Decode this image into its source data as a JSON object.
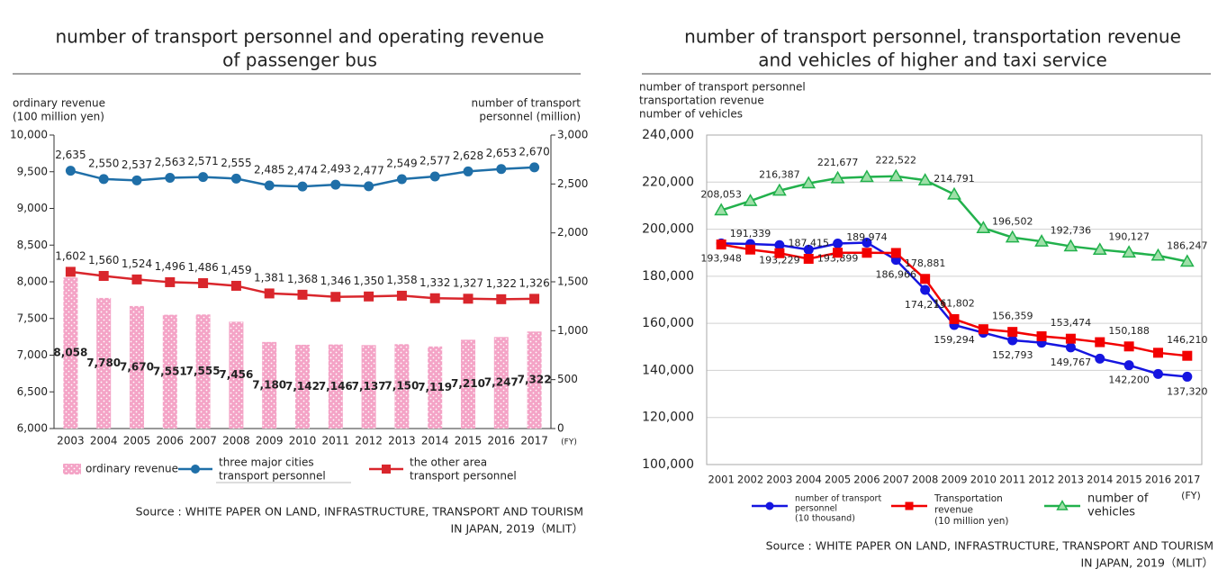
{
  "chart_data": [
    {
      "type": "bar",
      "title": [
        "number of transport personnel and operating revenue",
        "of passenger bus"
      ],
      "y_label": [
        "ordinary revenue",
        "(100 million yen)"
      ],
      "y2_label": [
        "number of transport",
        "personnel (million)"
      ],
      "x_label": "(FY)",
      "categories": [
        "2003",
        "2004",
        "2005",
        "2006",
        "2007",
        "2008",
        "2009",
        "2010",
        "2011",
        "2012",
        "2013",
        "2014",
        "2015",
        "2016",
        "2017"
      ],
      "ylim": [
        6000,
        10000
      ],
      "yticks": [
        {
          "value": 6000,
          "label": "6,000"
        },
        {
          "value": 6500,
          "label": "6,500"
        },
        {
          "value": 7000,
          "label": "7,000"
        },
        {
          "value": 7500,
          "label": "7,500"
        },
        {
          "value": 8000,
          "label": "8,000"
        },
        {
          "value": 8500,
          "label": "8,500"
        },
        {
          "value": 9000,
          "label": "9,000"
        },
        {
          "value": 9500,
          "label": "9,500"
        },
        {
          "value": 10000,
          "label": "10,000"
        }
      ],
      "y2lim": [
        0,
        3000
      ],
      "y2ticks": [
        0,
        500,
        {
          "value": 1000,
          "label": "1,000"
        },
        {
          "value": 1500,
          "label": "1,500"
        },
        {
          "value": 2000,
          "label": "2,000"
        },
        {
          "value": 2500,
          "label": "2,500"
        },
        {
          "value": 3000,
          "label": "3,000"
        }
      ],
      "series": [
        {
          "name": [
            "ordinary revenue"
          ],
          "type": "bar",
          "color": "#f4a3c6",
          "values": [
            8058,
            7780,
            7670,
            7551,
            7555,
            7456,
            7180,
            7142,
            7146,
            7137,
            7150,
            7119,
            7210,
            7247,
            7322
          ],
          "value_labels": [
            "8,058",
            "7,780",
            "7,670",
            "7,551",
            "7,555",
            "7,456",
            "7,180",
            "7,142",
            "7,146",
            "7,137",
            "7,150",
            "7,119",
            "7,210",
            "7,247",
            "7,322"
          ]
        },
        {
          "name": [
            "three major cities",
            "transport personnel"
          ],
          "type": "line",
          "axis": "y2",
          "color": "#1f6fa8",
          "marker": "circle",
          "values": [
            2635,
            2550,
            2537,
            2563,
            2571,
            2555,
            2485,
            2474,
            2493,
            2477,
            2549,
            2577,
            2628,
            2653,
            2670
          ],
          "value_labels": [
            "2,635",
            "2,550",
            "2,537",
            "2,563",
            "2,571",
            "2,555",
            "2,485",
            "2,474",
            "2,493",
            "2,477",
            "2,549",
            "2,577",
            "2,628",
            "2,653",
            "2,670"
          ]
        },
        {
          "name": [
            "the other area",
            "transport personnel"
          ],
          "type": "line",
          "axis": "y2",
          "color": "#d9262c",
          "marker": "square",
          "values": [
            1602,
            1560,
            1524,
            1496,
            1486,
            1459,
            1381,
            1368,
            1346,
            1350,
            1358,
            1332,
            1327,
            1322,
            1326
          ],
          "value_labels": [
            "1,602",
            "1,560",
            "1,524",
            "1,496",
            "1,486",
            "1,459",
            "1,381",
            "1,368",
            "1,346",
            "1,350",
            "1,358",
            "1,332",
            "1,327",
            "1,322",
            "1,326"
          ]
        }
      ],
      "source": [
        "Source : WHITE PAPER ON LAND, INFRASTRUCTURE, TRANSPORT AND TOURISM",
        "IN JAPAN, 2019（MLIT）"
      ]
    },
    {
      "type": "line",
      "title": [
        "number of transport personnel, transportation revenue",
        "and vehicles of higher and taxi service"
      ],
      "y_label": [
        "number of transport personnel",
        "transportation revenue",
        "number of vehicles"
      ],
      "x_label": "(FY)",
      "categories": [
        "2001",
        "2002",
        "2003",
        "2004",
        "2005",
        "2006",
        "2007",
        "2008",
        "2009",
        "2010",
        "2011",
        "2012",
        "2013",
        "2014",
        "2015",
        "2016",
        "2017"
      ],
      "ylim": [
        100000,
        240000
      ],
      "yticks": [
        {
          "value": 100000,
          "label": "100,000"
        },
        {
          "value": 120000,
          "label": "120,000"
        },
        {
          "value": 140000,
          "label": "140,000"
        },
        {
          "value": 160000,
          "label": "160,000"
        },
        {
          "value": 180000,
          "label": "180,000"
        },
        {
          "value": 200000,
          "label": "200,000"
        },
        {
          "value": 220000,
          "label": "220,000"
        },
        {
          "value": 240000,
          "label": "240,000"
        }
      ],
      "grid": true,
      "series": [
        {
          "name": [
            "number of transport",
            "personnel",
            "(10 thousand)"
          ],
          "color": "#1515e0",
          "marker": "circle",
          "values": [
            193948,
            193700,
            193229,
            191300,
            193899,
            194300,
            186966,
            174213,
            159294,
            156000,
            152793,
            151800,
            149767,
            145000,
            142200,
            138500,
            137320
          ],
          "value_labels": [
            "193,948",
            null,
            "193,229",
            null,
            "193,899",
            null,
            "186,966",
            "174,213",
            "159,294",
            null,
            "152,793",
            null,
            "149,767",
            null,
            "142,200",
            null,
            "137,320"
          ]
        },
        {
          "name": [
            "Transportation",
            "revenue",
            "(10 million yen)"
          ],
          "color": "#f20000",
          "marker": "square",
          "values": [
            193500,
            191339,
            189800,
            187415,
            190000,
            189974,
            189900,
            178881,
            161802,
            157500,
            156359,
            154500,
            153474,
            152000,
            150188,
            147500,
            146210
          ],
          "value_labels": [
            null,
            "191,339",
            null,
            "187,415",
            null,
            "189,974",
            null,
            "178,881",
            "161,802",
            null,
            "156,359",
            null,
            "153,474",
            null,
            "150,188",
            null,
            "146,210"
          ]
        },
        {
          "name": [
            "number of",
            "vehicles"
          ],
          "color": "#22b14c",
          "marker": "triangle",
          "values": [
            208053,
            212000,
            216387,
            219500,
            221677,
            222200,
            222522,
            220800,
            214791,
            200500,
            196502,
            194800,
            192736,
            191300,
            190127,
            188800,
            186247
          ],
          "value_labels": [
            "208,053",
            null,
            "216,387",
            null,
            "221,677",
            null,
            "222,522",
            null,
            "214,791",
            null,
            "196,502",
            null,
            "192,736",
            null,
            "190,127",
            null,
            "186,247"
          ]
        }
      ],
      "source": [
        "Source : WHITE PAPER ON LAND, INFRASTRUCTURE, TRANSPORT AND TOURISM",
        "IN JAPAN, 2019（MLIT）"
      ]
    }
  ]
}
